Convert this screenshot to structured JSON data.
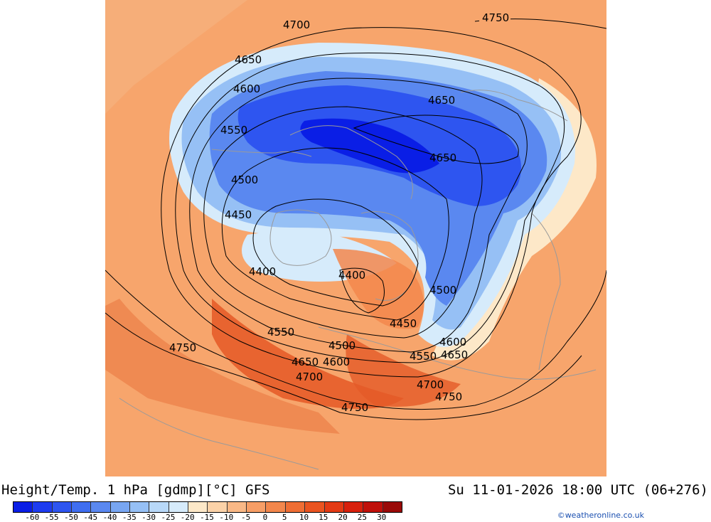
{
  "title": "Height/Temp. 1 hPa [gdmp][°C] GFS",
  "datetime": "Su 11-01-2026 18:00 UTC (06+276)",
  "credit": "©weatheronline.co.uk",
  "colorbar": {
    "colors": [
      "#0a1ee6",
      "#1e3cf0",
      "#2e55f0",
      "#3f6ef0",
      "#5a88f0",
      "#78a6f2",
      "#96c0f5",
      "#b8d8f8",
      "#d6ebfb",
      "#fde8c8",
      "#fbd2a8",
      "#f9b886",
      "#f79e66",
      "#f3874c",
      "#ef6e34",
      "#ea5420",
      "#e33a14",
      "#d8200c",
      "#c0100a",
      "#9a0a08"
    ],
    "tick_labels": [
      "-60",
      "-55",
      "-50",
      "-45",
      "-40",
      "-35",
      "-30",
      "-25",
      "-20",
      "-15",
      "-10",
      "-5",
      "0",
      "5",
      "10",
      "15",
      "20",
      "25",
      "30"
    ]
  },
  "contour_labels": [
    {
      "text": "4750",
      "id": "ne"
    },
    {
      "text": "4700",
      "id": "n"
    },
    {
      "text": "4650",
      "id": "nw"
    },
    {
      "text": "4600",
      "id": "nw2"
    },
    {
      "text": "4550",
      "id": "w1"
    },
    {
      "text": "4500",
      "id": "w2"
    },
    {
      "text": "4450",
      "id": "w3"
    },
    {
      "text": "4400",
      "id": "c1"
    },
    {
      "text": "4400",
      "id": "c2"
    },
    {
      "text": "4650",
      "id": "e1"
    },
    {
      "text": "4650",
      "id": "e2"
    },
    {
      "text": "4500",
      "id": "e3"
    },
    {
      "text": "4450",
      "id": "s1"
    },
    {
      "text": "4600",
      "id": "e4"
    },
    {
      "text": "4650",
      "id": "e5"
    },
    {
      "text": "4550",
      "id": "s2"
    },
    {
      "text": "4550",
      "id": "s3"
    },
    {
      "text": "4500",
      "id": "s4"
    },
    {
      "text": "4650",
      "id": "s5"
    },
    {
      "text": "4600",
      "id": "s6"
    },
    {
      "text": "4700",
      "id": "s7"
    },
    {
      "text": "4700",
      "id": "s8"
    },
    {
      "text": "4750",
      "id": "s9"
    },
    {
      "text": "4750",
      "id": "s10"
    },
    {
      "text": "4750",
      "id": "w4"
    }
  ]
}
